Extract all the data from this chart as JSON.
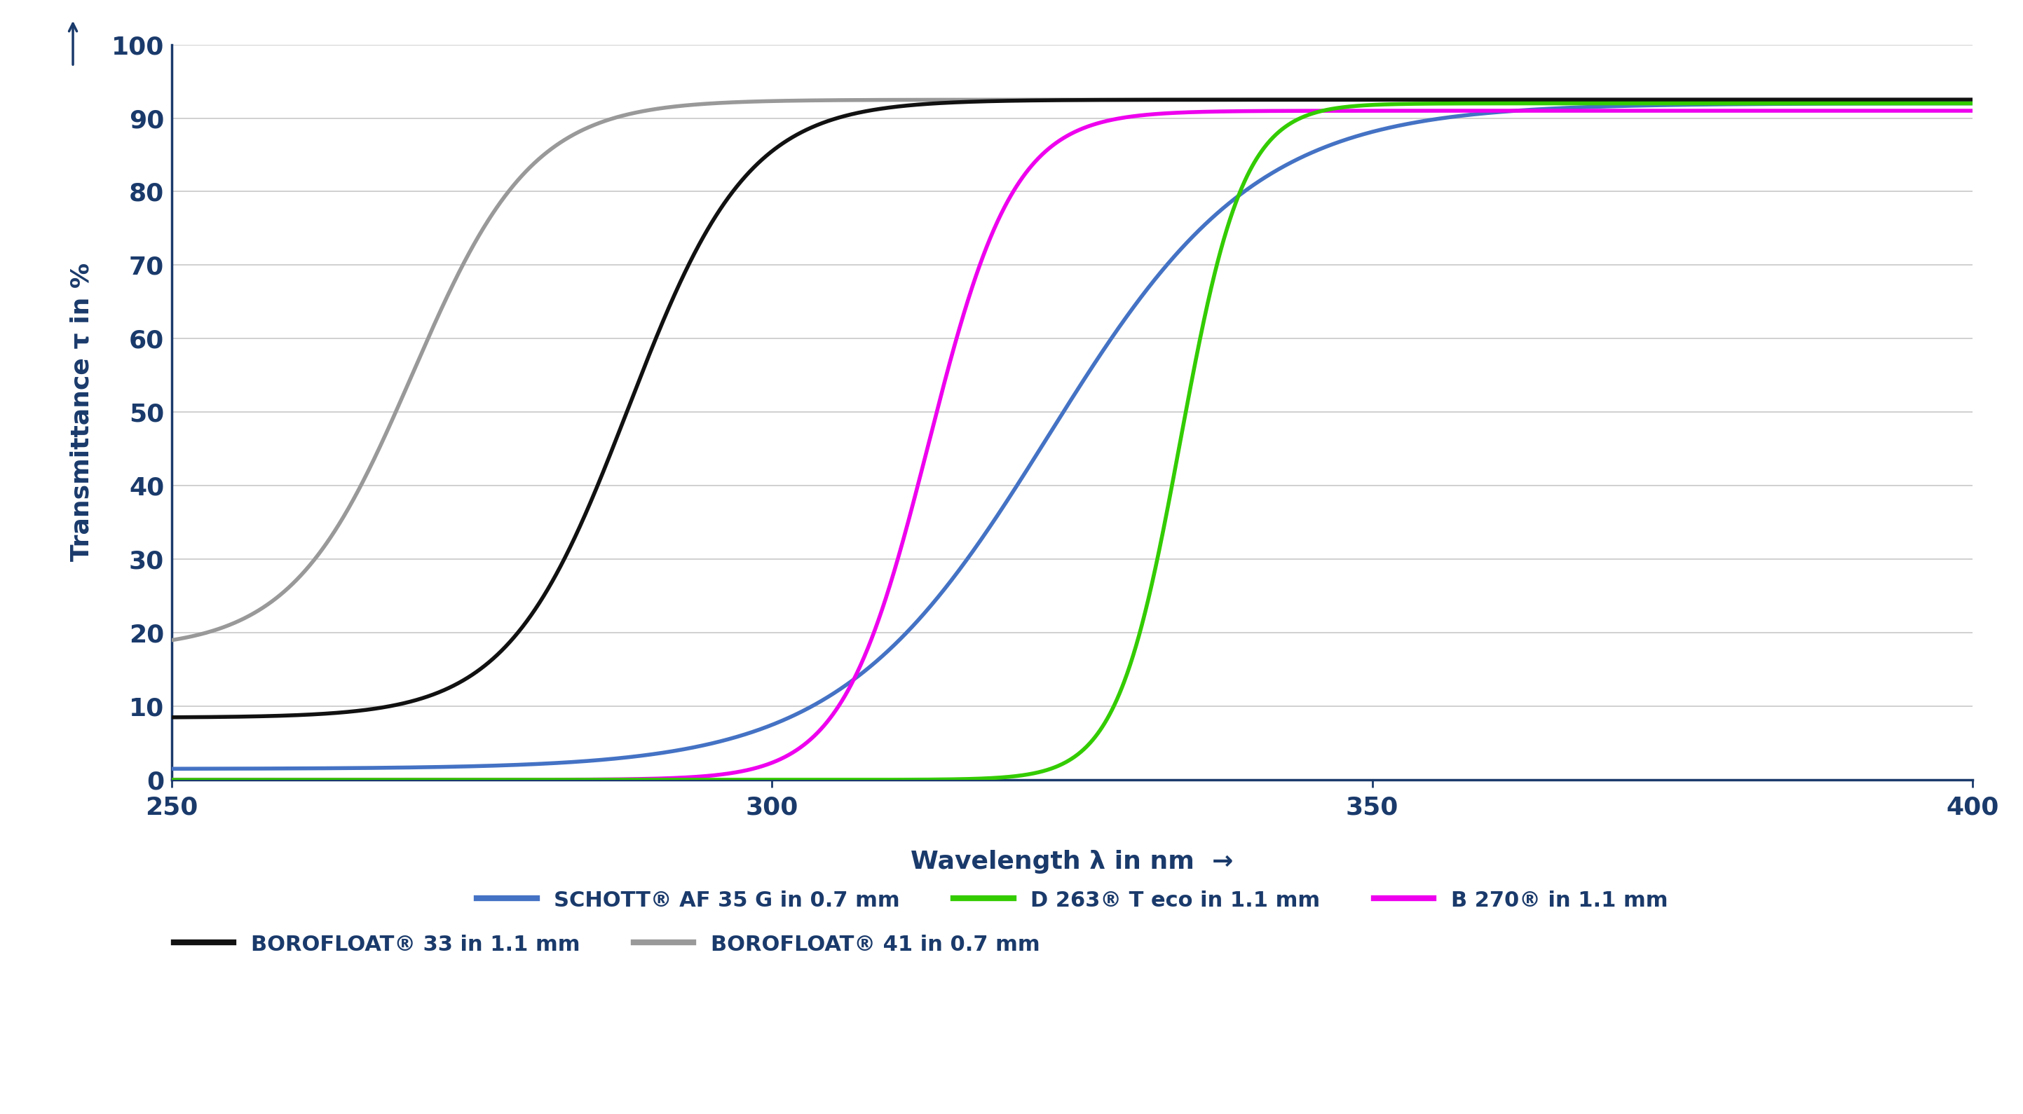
{
  "xlabel": "Wavelength λ in nm",
  "ylabel": "Transmittance τ in %",
  "xlim": [
    250,
    400
  ],
  "ylim": [
    0,
    100
  ],
  "xticks": [
    250,
    300,
    350,
    400
  ],
  "yticks": [
    0,
    10,
    20,
    30,
    40,
    50,
    60,
    70,
    80,
    90,
    100
  ],
  "background_color": "#ffffff",
  "grid_color": "#c8c8c8",
  "axis_color": "#1a3a6b",
  "tick_color": "#1a3a6b",
  "label_color": "#1a3a6b",
  "curves": {
    "AF35G": {
      "color": "#4472c4",
      "label": "SCHOTT® AF 35 G in 0.7 mm",
      "midpoint": 323,
      "steepness": 0.115,
      "y_low": 1.5,
      "y_high": 92.0
    },
    "D263": {
      "color": "#33cc00",
      "label": "D 263® T eco in 1.1 mm",
      "midpoint": 334,
      "steepness": 0.38,
      "y_low": 0.0,
      "y_high": 92.0
    },
    "B270": {
      "color": "#ee00ee",
      "label": "B 270® in 1.1 mm",
      "midpoint": 313,
      "steepness": 0.28,
      "y_low": 0.0,
      "y_high": 91.0
    },
    "BOROFLOAT33": {
      "color": "#111111",
      "label": "BOROFLOAT® 33 in 1.1 mm",
      "midpoint": 288,
      "steepness": 0.2,
      "y_low": 8.5,
      "y_high": 92.5
    },
    "BOROFLOAT41": {
      "color": "#999999",
      "label": "BOROFLOAT® 41 in 0.7 mm",
      "midpoint": 270,
      "steepness": 0.2,
      "y_low": 19.0,
      "y_high": 92.5
    }
  },
  "legend_text_color": "#1a3a6b",
  "linewidth": 4.0,
  "arrow_color": "#1a3a6b",
  "tick_fontsize": 26,
  "label_fontsize": 26,
  "legend_fontsize": 22
}
